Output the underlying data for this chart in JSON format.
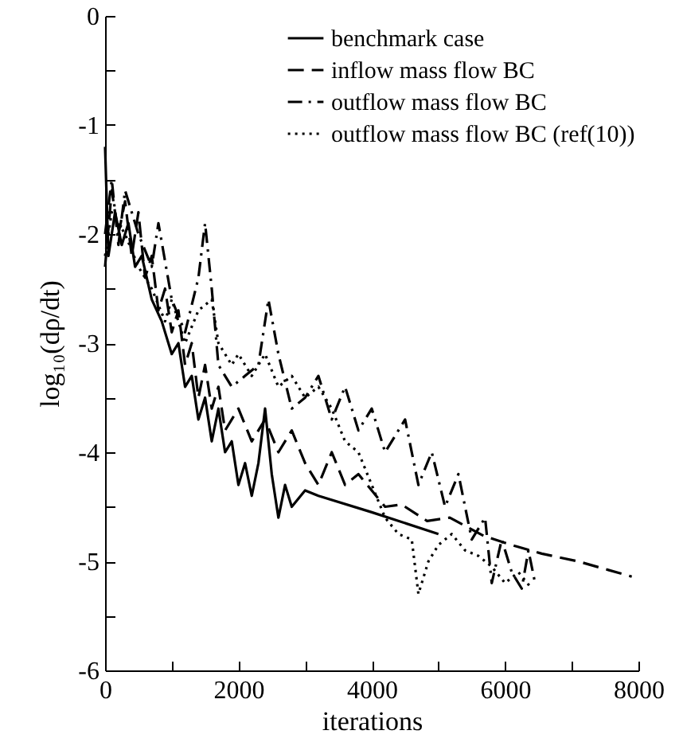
{
  "chart_data": {
    "type": "line",
    "xlabel": "iterations",
    "ylabel": "log₁₀(dρ/dt)",
    "xlim": [
      0,
      8000
    ],
    "ylim": [
      -6,
      0
    ],
    "xticks": [
      0,
      {
        "value": 1000,
        "label": null
      },
      2000,
      {
        "value": 3000,
        "label": null
      },
      4000,
      {
        "value": 5000,
        "label": null
      },
      6000,
      {
        "value": 7000,
        "label": null
      },
      8000
    ],
    "yticks": [
      -6,
      {
        "value": -5.5,
        "label": null
      },
      -5,
      {
        "value": -4.5,
        "label": null
      },
      -4,
      {
        "value": -3.5,
        "label": null
      },
      -3,
      {
        "value": -2.5,
        "label": null
      },
      -2,
      {
        "value": -1.5,
        "label": null
      },
      -1,
      {
        "value": -0.5,
        "label": null
      },
      0
    ],
    "grid": false,
    "legend": "top right",
    "series": [
      {
        "name": "benchmark case",
        "color": "#000000",
        "line_style": "solid",
        "x": [
          0,
          50,
          150,
          250,
          350,
          450,
          550,
          700,
          850,
          1000,
          1100,
          1200,
          1300,
          1400,
          1500,
          1600,
          1700,
          1800,
          1900,
          2000,
          2100,
          2200,
          2300,
          2400,
          2500,
          2600,
          2700,
          2800,
          3000,
          3200,
          4000,
          5000
        ],
        "values": [
          -1.2,
          -2.2,
          -1.8,
          -2.1,
          -1.9,
          -2.3,
          -2.2,
          -2.6,
          -2.8,
          -3.1,
          -3.0,
          -3.4,
          -3.3,
          -3.7,
          -3.5,
          -3.9,
          -3.6,
          -4.0,
          -3.9,
          -4.3,
          -4.1,
          -4.4,
          -4.1,
          -3.6,
          -4.2,
          -4.6,
          -4.3,
          -4.5,
          -4.35,
          -4.4,
          -4.55,
          -4.75
        ]
      },
      {
        "name": "inflow mass flow BC",
        "color": "#000000",
        "line_style": "dashed",
        "x": [
          0,
          100,
          200,
          300,
          400,
          500,
          600,
          700,
          800,
          900,
          1000,
          1100,
          1200,
          1300,
          1400,
          1500,
          1600,
          1700,
          1800,
          2000,
          2200,
          2400,
          2600,
          2800,
          3000,
          3200,
          3400,
          3600,
          3800,
          4000,
          4200,
          4450,
          4830,
          5170,
          5690,
          6150,
          6550,
          7090,
          7900
        ],
        "values": [
          -2.3,
          -1.6,
          -2.0,
          -1.7,
          -2.2,
          -1.8,
          -2.4,
          -2.2,
          -2.7,
          -2.5,
          -2.9,
          -2.7,
          -3.2,
          -3.0,
          -3.5,
          -3.2,
          -3.6,
          -3.4,
          -3.8,
          -3.6,
          -3.9,
          -3.7,
          -4.0,
          -3.8,
          -4.1,
          -4.3,
          -4.0,
          -4.3,
          -4.2,
          -4.35,
          -4.5,
          -4.48,
          -4.63,
          -4.6,
          -4.77,
          -4.86,
          -4.93,
          -5.0,
          -5.14
        ]
      },
      {
        "name": "outflow mass flow BC",
        "color": "#000000",
        "line_style": "dashdot",
        "x": [
          0,
          100,
          200,
          300,
          500,
          700,
          800,
          1000,
          1200,
          1400,
          1500,
          1600,
          1700,
          1900,
          2100,
          2300,
          2450,
          2600,
          2800,
          3000,
          3200,
          3400,
          3600,
          3800,
          4000,
          4200,
          4400,
          4500,
          4700,
          4900,
          5100,
          5300,
          5500,
          5700,
          5800,
          5950,
          6100,
          6250,
          6350,
          6450
        ],
        "values": [
          -2.0,
          -1.5,
          -2.1,
          -1.6,
          -2.0,
          -2.3,
          -1.9,
          -2.6,
          -2.9,
          -2.4,
          -1.9,
          -2.5,
          -3.2,
          -3.4,
          -3.3,
          -3.2,
          -2.6,
          -3.1,
          -3.6,
          -3.5,
          -3.3,
          -3.7,
          -3.4,
          -3.8,
          -3.6,
          -4.0,
          -3.8,
          -3.7,
          -4.3,
          -4.0,
          -4.5,
          -4.2,
          -4.8,
          -4.6,
          -5.2,
          -4.8,
          -5.1,
          -5.25,
          -4.9,
          -5.2
        ]
      },
      {
        "name": "outflow mass flow BC (ref(10))",
        "color": "#000000",
        "line_style": "dotted",
        "x": [
          0,
          100,
          300,
          500,
          700,
          900,
          1000,
          1200,
          1400,
          1600,
          1700,
          1900,
          2000,
          2200,
          2400,
          2600,
          2800,
          3000,
          3200,
          3400,
          3600,
          3800,
          4000,
          4200,
          4400,
          4600,
          4700,
          4850,
          5000,
          5200,
          5400,
          5600,
          5800,
          6000,
          6200,
          6400
        ],
        "values": [
          -2.2,
          -1.8,
          -2.0,
          -2.3,
          -2.5,
          -2.8,
          -2.6,
          -3.0,
          -2.7,
          -2.6,
          -3.0,
          -3.2,
          -3.1,
          -3.3,
          -3.1,
          -3.4,
          -3.3,
          -3.5,
          -3.4,
          -3.6,
          -3.9,
          -4.0,
          -4.3,
          -4.6,
          -4.75,
          -4.8,
          -5.3,
          -5.0,
          -4.85,
          -4.75,
          -4.9,
          -4.95,
          -5.05,
          -5.2,
          -5.1,
          -5.25
        ]
      }
    ]
  }
}
